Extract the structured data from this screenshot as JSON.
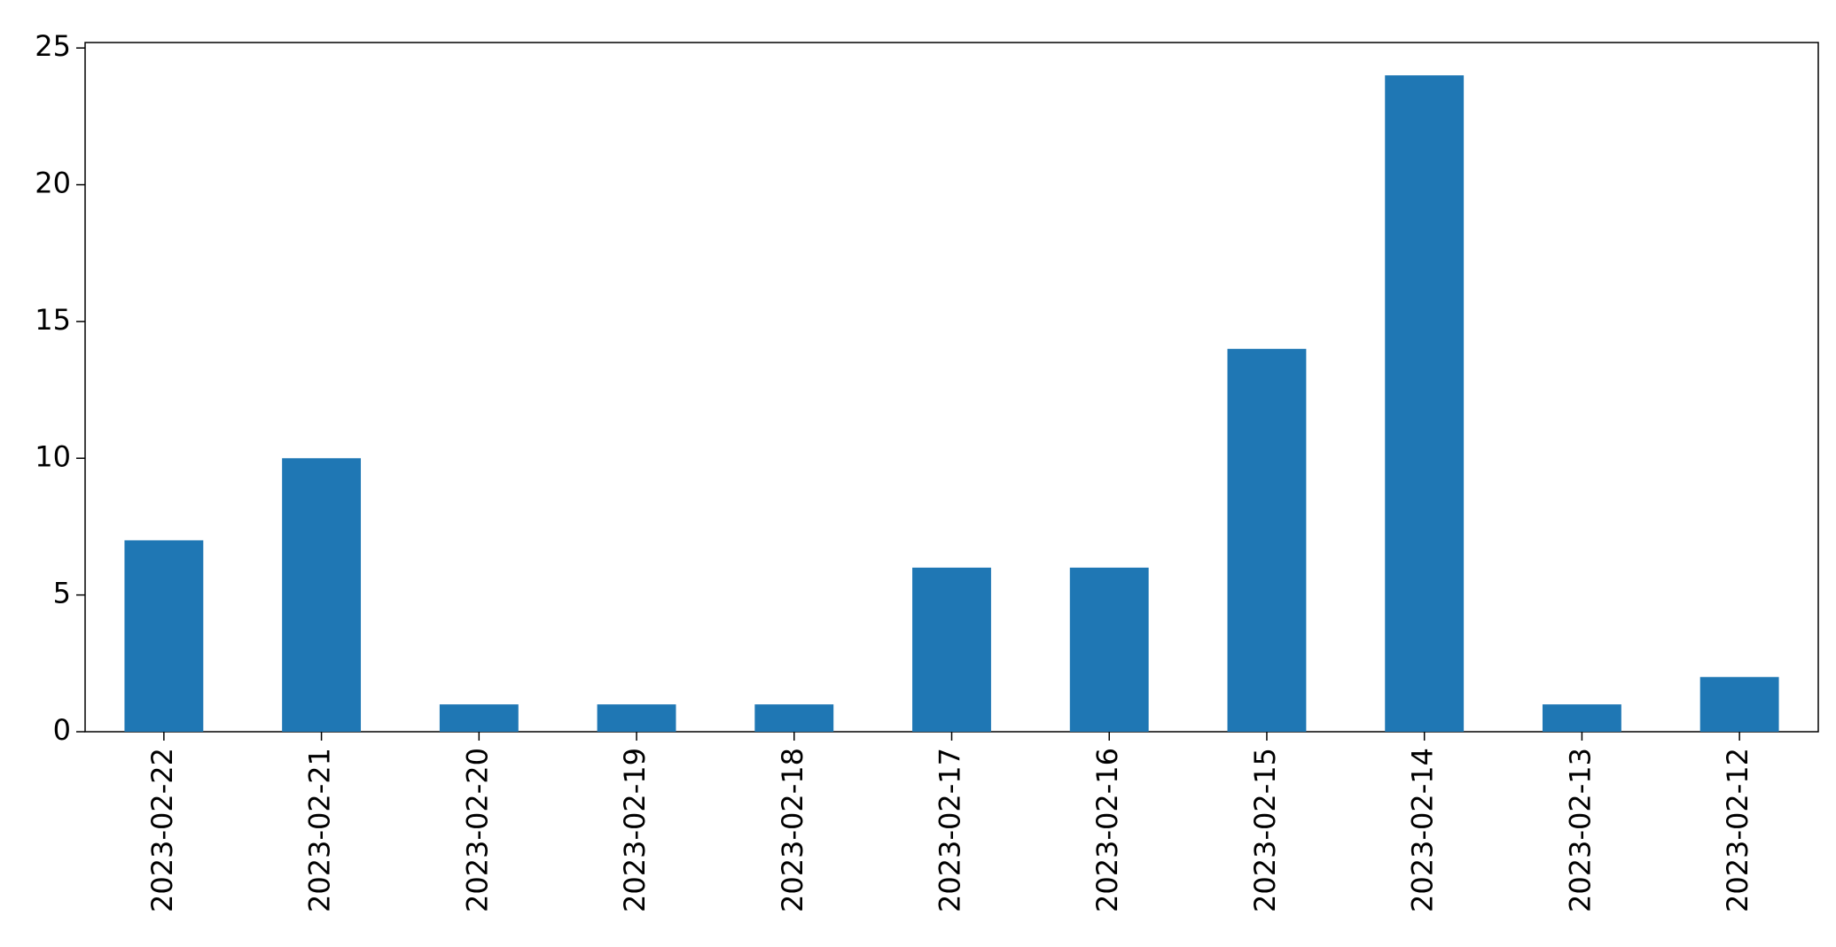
{
  "chart_data": {
    "type": "bar",
    "categories": [
      "2023-02-22",
      "2023-02-21",
      "2023-02-20",
      "2023-02-19",
      "2023-02-18",
      "2023-02-17",
      "2023-02-16",
      "2023-02-15",
      "2023-02-14",
      "2023-02-13",
      "2023-02-12"
    ],
    "values": [
      7,
      10,
      1,
      1,
      1,
      6,
      6,
      14,
      24,
      1,
      2
    ],
    "color": "#1f77b4",
    "ylim": [
      0,
      25.2
    ],
    "yticks": [
      0,
      5,
      10,
      15,
      20,
      25
    ],
    "grid": false
  }
}
